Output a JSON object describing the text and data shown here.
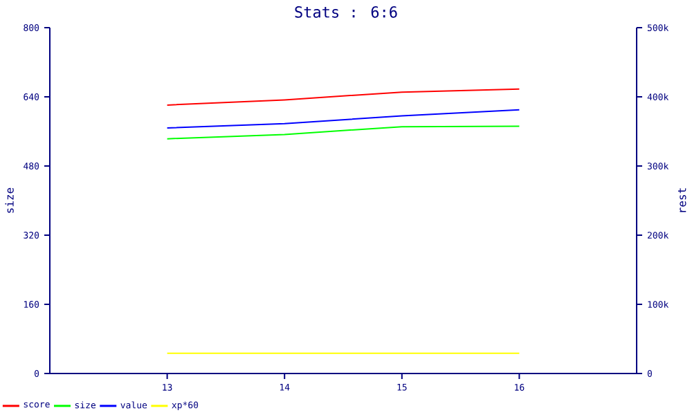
{
  "chart_data": {
    "type": "line",
    "title": "Stats : 6:6",
    "ylabel": "size",
    "y2label": "rest",
    "x": [
      13,
      14,
      15,
      16
    ],
    "xlim": [
      12,
      17
    ],
    "xticks": [
      13,
      14,
      15,
      16
    ],
    "ylim": [
      0,
      800
    ],
    "yticks": [
      0,
      160,
      320,
      480,
      640,
      800
    ],
    "y2lim": [
      0,
      500000
    ],
    "y2ticks": [
      {
        "value": 0,
        "label": "0"
      },
      {
        "value": 100000,
        "label": "100k"
      },
      {
        "value": 200000,
        "label": "200k"
      },
      {
        "value": 300000,
        "label": "300k"
      },
      {
        "value": 400000,
        "label": "400k"
      },
      {
        "value": 500000,
        "label": "500k"
      }
    ],
    "legend": "bottom left",
    "marker": "none",
    "line_style": "solid",
    "series": [
      {
        "name": "score",
        "color": "#ff0000",
        "values": [
          621,
          633,
          651,
          658
        ]
      },
      {
        "name": "size",
        "color": "#00ff00",
        "values": [
          543,
          553,
          571,
          572
        ]
      },
      {
        "name": "value",
        "color": "#0000ff",
        "values": [
          568,
          578,
          596,
          610
        ]
      },
      {
        "name": "xp*60",
        "color": "#ffff00",
        "values": [
          47,
          47,
          47,
          47
        ]
      }
    ]
  }
}
